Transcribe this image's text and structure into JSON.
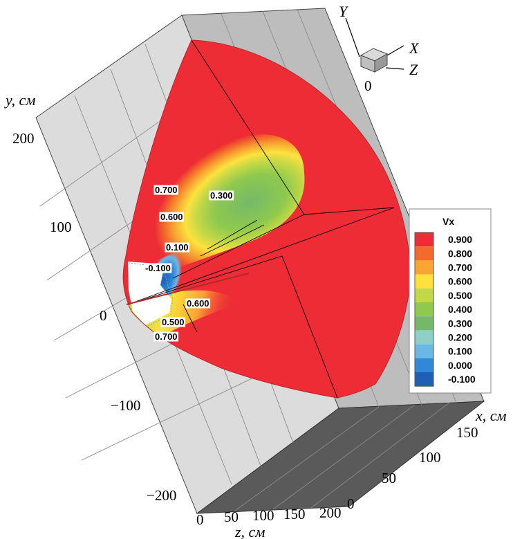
{
  "chart_data": {
    "type": "heatmap",
    "variable": "Vx",
    "axes": {
      "y": {
        "label": "y, см",
        "ticks": [
          "200",
          "100",
          "0",
          "−100",
          "−200"
        ]
      },
      "z": {
        "label": "z, см",
        "ticks": [
          "0",
          "50",
          "100",
          "150",
          "200"
        ]
      },
      "x": {
        "label": "x, см",
        "ticks": [
          "0",
          "50",
          "100",
          "150"
        ]
      }
    },
    "triad": {
      "y": "Y",
      "x": "X",
      "z": "Z",
      "origin": "0"
    },
    "legend": {
      "title": "Vx",
      "placement": "right",
      "levels": [
        "0.900",
        "0.800",
        "0.700",
        "0.600",
        "0.500",
        "0.400",
        "0.300",
        "0.200",
        "0.100",
        "0.000",
        "-0.100"
      ],
      "colors": [
        "#ee2c36",
        "#f26a2c",
        "#f8a531",
        "#fde23e",
        "#c3d846",
        "#8fc94d",
        "#74b96a",
        "#8fcfc6",
        "#6ab8e6",
        "#2f88d8",
        "#1f5fb4"
      ]
    },
    "contour_labels": [
      "0.700",
      "0.300",
      "0.600",
      "0.100",
      "-0.100",
      "0.600",
      "0.500",
      "0.700"
    ]
  }
}
